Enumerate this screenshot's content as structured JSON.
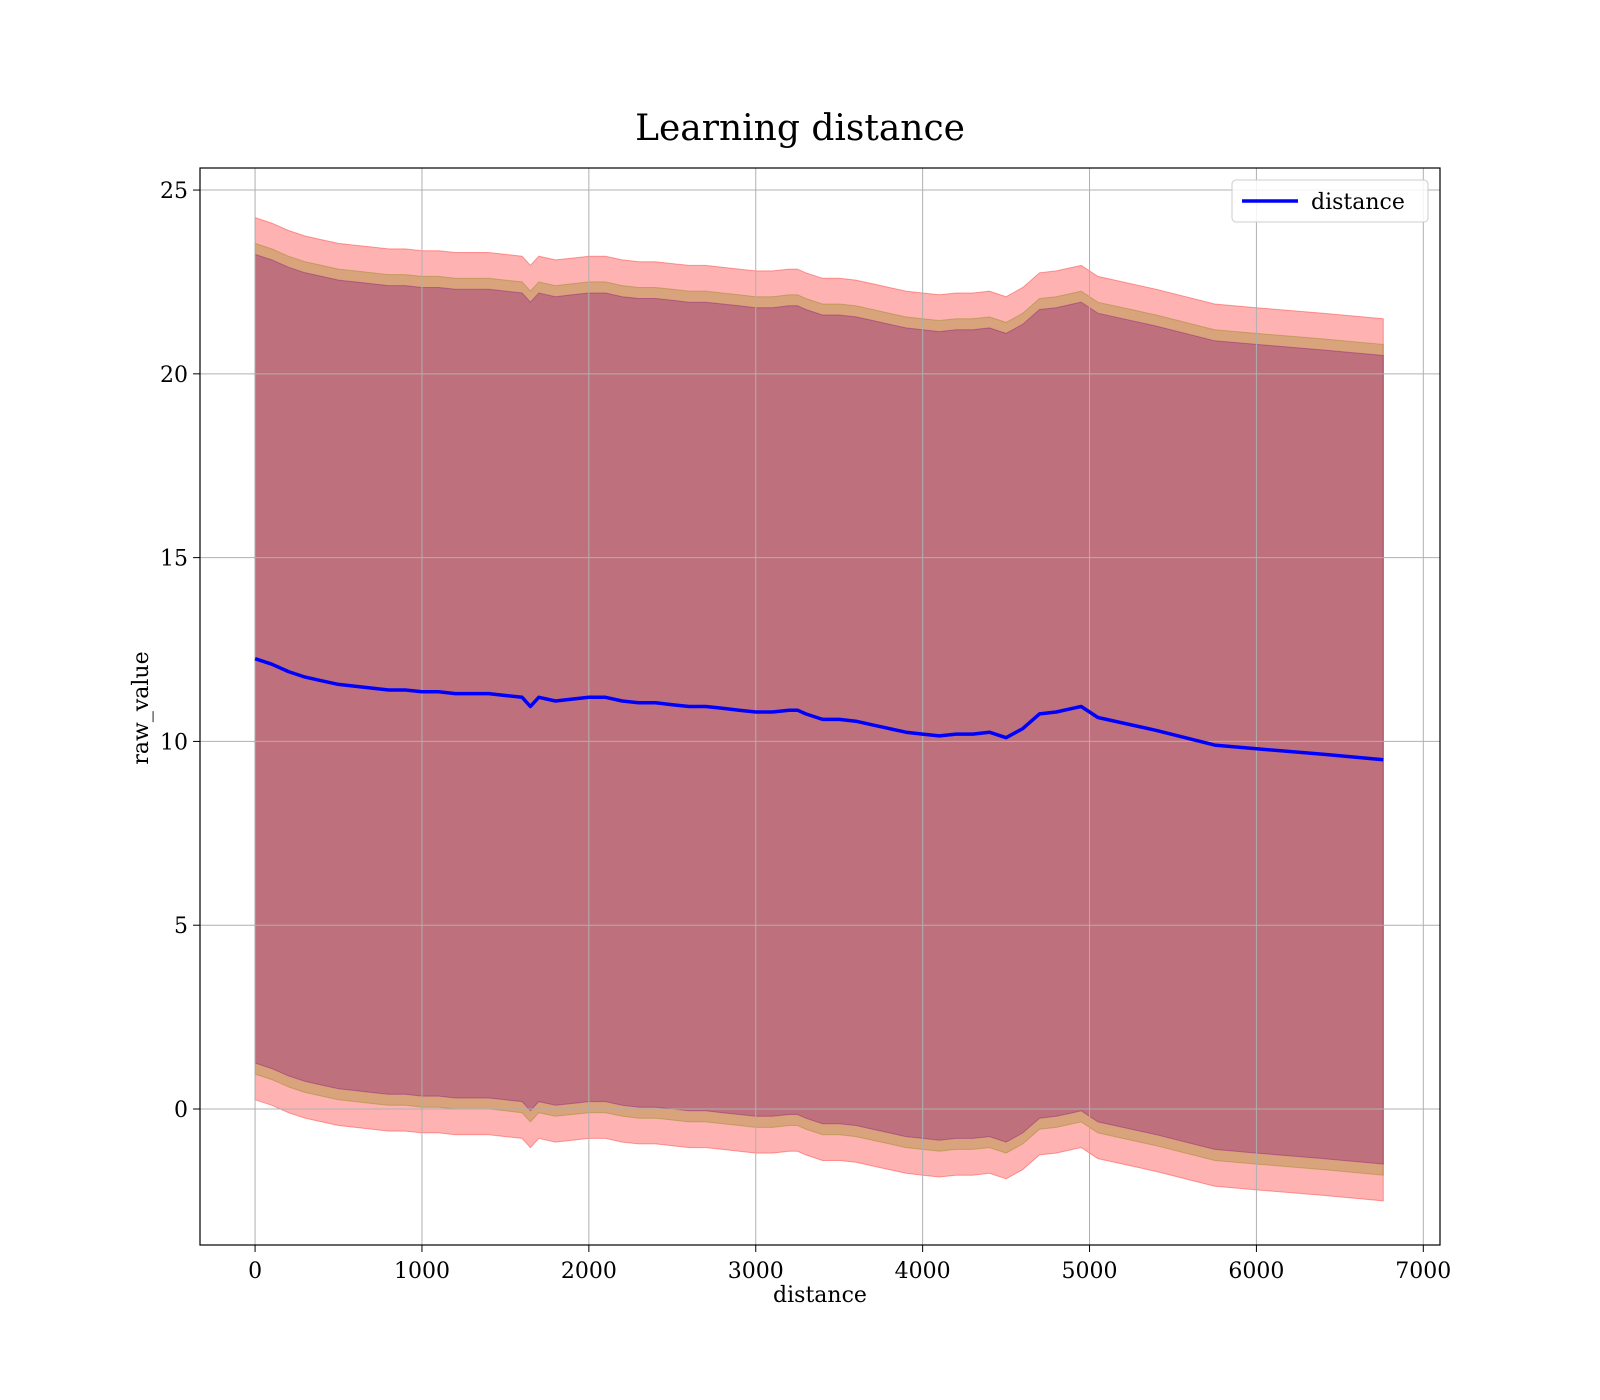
{
  "chart_data": {
    "type": "line",
    "title": "Learning distance",
    "xlabel": "distance",
    "ylabel": "raw_value",
    "xlim": [
      -330,
      7100
    ],
    "ylim": [
      -3.7,
      25.6
    ],
    "x_ticks": [
      0,
      1000,
      2000,
      3000,
      4000,
      5000,
      6000,
      7000
    ],
    "y_ticks": [
      0,
      5,
      10,
      15,
      20,
      25
    ],
    "grid": true,
    "legend_position": "upper right",
    "colors": {
      "line": "#0000ff",
      "band_outer": "#ff0000",
      "band_mid": "#808000",
      "band_inner": "#800080"
    },
    "series": [
      {
        "name": "distance",
        "x": [
          0,
          100,
          200,
          300,
          400,
          500,
          600,
          700,
          800,
          900,
          1000,
          1100,
          1200,
          1300,
          1400,
          1500,
          1600,
          1650,
          1700,
          1800,
          1900,
          2000,
          2100,
          2200,
          2300,
          2400,
          2500,
          2600,
          2700,
          2800,
          2900,
          3000,
          3100,
          3200,
          3250,
          3300,
          3400,
          3500,
          3600,
          3700,
          3800,
          3900,
          4000,
          4100,
          4200,
          4300,
          4400,
          4500,
          4600,
          4700,
          4800,
          4900,
          4950,
          5050,
          5400,
          5750,
          6000,
          6400,
          6760
        ],
        "y": [
          12.25,
          12.1,
          11.9,
          11.75,
          11.65,
          11.55,
          11.5,
          11.45,
          11.4,
          11.4,
          11.35,
          11.35,
          11.3,
          11.3,
          11.3,
          11.25,
          11.2,
          10.95,
          11.2,
          11.1,
          11.15,
          11.2,
          11.2,
          11.1,
          11.05,
          11.05,
          11.0,
          10.95,
          10.95,
          10.9,
          10.85,
          10.8,
          10.8,
          10.85,
          10.85,
          10.75,
          10.6,
          10.6,
          10.55,
          10.45,
          10.35,
          10.25,
          10.2,
          10.15,
          10.2,
          10.2,
          10.25,
          10.1,
          10.35,
          10.75,
          10.8,
          10.9,
          10.95,
          10.65,
          10.3,
          9.9,
          9.8,
          9.65,
          9.5
        ]
      }
    ],
    "bands": [
      {
        "offset": 12.0
      },
      {
        "offset": 11.3
      },
      {
        "offset": 11.0
      }
    ]
  }
}
